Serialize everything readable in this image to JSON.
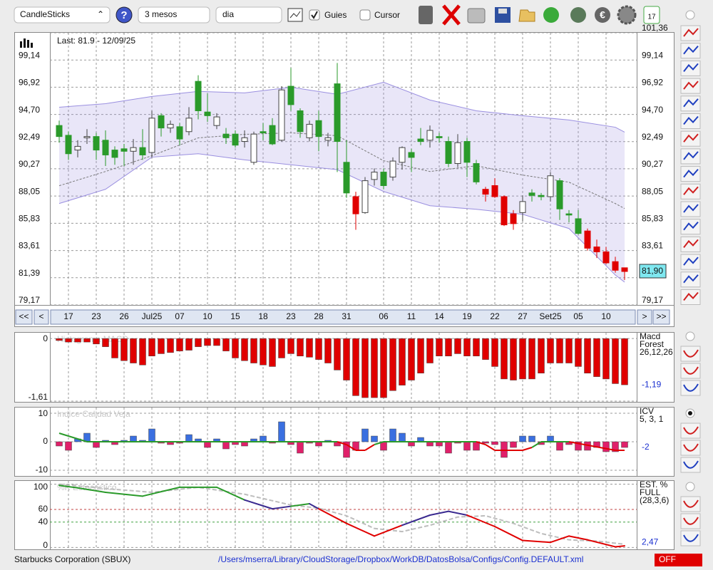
{
  "toolbar": {
    "chart_type": "CandleSticks",
    "help": "?",
    "period": "3 mesos",
    "interval": "dia",
    "guides": {
      "label": "Guies",
      "checked": true
    },
    "cursor": {
      "label": "Cursor",
      "checked": false
    }
  },
  "navigation": {
    "first": "<<",
    "prev": "<",
    "next": ">",
    "last": ">>"
  },
  "chart_data": [
    {
      "type": "candlestick",
      "info": "Last: 81.9 - 12/09/25",
      "last_value_label": "81,90",
      "categories": [
        null,
        "17",
        null,
        null,
        "23",
        null,
        null,
        "26",
        null,
        null,
        "Jul25",
        null,
        null,
        "07",
        null,
        null,
        "10",
        null,
        null,
        "15",
        null,
        null,
        "18",
        null,
        null,
        "23",
        null,
        null,
        "28",
        null,
        null,
        "31",
        null,
        null,
        null,
        "06",
        null,
        null,
        "11",
        null,
        null,
        "14",
        null,
        null,
        "19",
        null,
        null,
        "22",
        null,
        null,
        "27",
        null,
        null,
        "Set25",
        null,
        null,
        "05",
        null,
        null,
        "10",
        null,
        null
      ],
      "open": [
        93.8,
        93.0,
        91.8,
        92.8,
        92.9,
        92.6,
        91.8,
        91.9,
        91.7,
        92.0,
        91.6,
        94.6,
        93.6,
        93.7,
        93.3,
        97.4,
        94.9,
        93.8,
        93.1,
        93.1,
        92.5,
        90.8,
        93.3,
        93.8,
        92.6,
        97.0,
        95.0,
        92.8,
        94.2,
        92.6,
        97.2,
        90.8,
        88.0,
        86.7,
        89.4,
        90.0,
        89.6,
        90.8,
        91.6,
        92.7,
        92.6,
        92.9,
        92.5,
        90.7,
        92.5,
        90.7,
        88.6,
        88.9,
        88.0,
        86.6,
        86.7,
        88.3,
        88.1,
        88.0,
        89.3,
        86.6,
        86.2,
        85.2,
        83.9,
        83.5,
        82.7,
        82.2
      ],
      "high": [
        94.2,
        93.3,
        92.6,
        93.5,
        93.2,
        93.4,
        92.1,
        92.3,
        92.7,
        93.5,
        95.0,
        94.8,
        94.2,
        94.0,
        95.3,
        97.9,
        96.4,
        94.8,
        93.6,
        93.4,
        93.4,
        93.3,
        94.0,
        94.4,
        97.0,
        98.5,
        95.2,
        94.2,
        95.0,
        93.2,
        98.9,
        92.6,
        88.4,
        89.6,
        90.3,
        90.3,
        91.2,
        92.1,
        91.9,
        93.6,
        93.8,
        93.2,
        92.9,
        93.1,
        92.8,
        91.0,
        88.8,
        89.5,
        88.1,
        86.9,
        88.1,
        88.6,
        88.3,
        90.0,
        89.5,
        86.9,
        86.9,
        85.4,
        84.5,
        83.9,
        83.1,
        82.2
      ],
      "low": [
        92.4,
        91.0,
        91.2,
        92.3,
        91.0,
        90.5,
        90.6,
        90.5,
        90.6,
        91.0,
        91.2,
        92.9,
        93.2,
        92.2,
        93.0,
        94.3,
        94.1,
        93.5,
        92.3,
        92.0,
        92.0,
        90.6,
        92.6,
        92.2,
        92.5,
        95.0,
        92.8,
        92.5,
        91.7,
        92.1,
        90.0,
        87.9,
        85.3,
        86.6,
        88.9,
        88.6,
        89.3,
        90.2,
        90.0,
        92.2,
        92.0,
        92.4,
        90.4,
        90.4,
        89.6,
        89.0,
        87.6,
        87.9,
        85.6,
        85.3,
        86.0,
        87.6,
        87.7,
        87.6,
        86.1,
        85.9,
        84.9,
        83.6,
        83.0,
        82.5,
        81.8,
        81.2
      ],
      "close": [
        92.9,
        91.5,
        92.1,
        92.9,
        91.8,
        91.4,
        91.2,
        91.7,
        92.0,
        91.4,
        94.4,
        93.6,
        93.9,
        92.7,
        94.4,
        95.0,
        94.6,
        94.5,
        92.8,
        92.2,
        92.8,
        93.1,
        93.2,
        92.3,
        96.7,
        95.5,
        93.3,
        93.9,
        92.9,
        92.8,
        92.5,
        88.3,
        86.6,
        89.3,
        90.0,
        88.9,
        90.9,
        92.0,
        91.2,
        92.5,
        93.4,
        92.8,
        90.7,
        92.4,
        90.8,
        89.2,
        88.2,
        88.0,
        85.7,
        85.8,
        87.6,
        88.1,
        88.0,
        89.7,
        87.0,
        86.5,
        85.0,
        83.8,
        83.5,
        82.6,
        82.0,
        81.9
      ],
      "colors": [
        "#2a9a2a",
        "#2a9a2a",
        "#ffffff",
        "#ffffff",
        "#2a9a2a",
        "#2a9a2a",
        "#2a9a2a",
        "#2a9a2a",
        "#ffffff",
        "#2a9a2a",
        "#ffffff",
        "#2a9a2a",
        "#ffffff",
        "#2a9a2a",
        "#ffffff",
        "#2a9a2a",
        "#2a9a2a",
        "#ffffff",
        "#2a9a2a",
        "#2a9a2a",
        "#ffffff",
        "#ffffff",
        "#2a9a2a",
        "#2a9a2a",
        "#ffffff",
        "#2a9a2a",
        "#2a9a2a",
        "#ffffff",
        "#2a9a2a",
        "#ffffff",
        "#2a9a2a",
        "#2a9a2a",
        "#e00000",
        "#ffffff",
        "#ffffff",
        "#2a9a2a",
        "#ffffff",
        "#ffffff",
        "#2a9a2a",
        "#2a9a2a",
        "#ffffff",
        "#2a9a2a",
        "#2a9a2a",
        "#ffffff",
        "#2a9a2a",
        "#2a9a2a",
        "#e00000",
        "#e00000",
        "#e00000",
        "#e00000",
        "#ffffff",
        "#2a9a2a",
        "#2a9a2a",
        "#ffffff",
        "#2a9a2a",
        "#2a9a2a",
        "#2a9a2a",
        "#e00000",
        "#e00000",
        "#e00000",
        "#e00000",
        "#e00000"
      ],
      "bands": {
        "color": "#9a8fe0",
        "x": [
          0,
          5,
          10,
          15,
          20,
          25,
          30,
          35,
          40,
          45,
          50,
          55,
          60,
          61
        ],
        "upper": [
          95.29,
          95.58,
          96.17,
          96.58,
          96.46,
          96.92,
          96.34,
          97.33,
          95.88,
          95.0,
          94.6,
          94.25,
          93.66,
          93.26
        ],
        "middle": [
          88.89,
          90.05,
          91.34,
          92.79,
          93.08,
          93.2,
          92.97,
          90.93,
          90.05,
          90.52,
          89.76,
          89.18,
          87.44,
          87.03
        ],
        "lower": [
          87.44,
          88.6,
          91.22,
          91.5,
          91.0,
          90.6,
          90.2,
          88.42,
          87.26,
          86.97,
          86.56,
          85.4,
          81.61,
          81.03
        ]
      },
      "ylim": [
        79.17,
        101.36
      ],
      "yticks": [
        {
          "value": 79.17,
          "label": "79,17"
        },
        {
          "value": 81.39,
          "label": "81,39"
        },
        {
          "value": 83.61,
          "label": "83,61"
        },
        {
          "value": 85.83,
          "label": "85,83"
        },
        {
          "value": 88.05,
          "label": "88,05"
        },
        {
          "value": 90.27,
          "label": "90,27"
        },
        {
          "value": 92.49,
          "label": "92,49"
        },
        {
          "value": 94.7,
          "label": "94,70"
        },
        {
          "value": 96.92,
          "label": "96,92"
        },
        {
          "value": 99.14,
          "label": "99,14"
        },
        {
          "value": 101.36,
          "label": "101,36"
        }
      ],
      "grid": true
    },
    {
      "type": "bar",
      "title": "Histograma MACD",
      "label_lines": [
        "Macd",
        "Forest",
        "26,12,26"
      ],
      "last_value_label": "-1,19",
      "color": "#e00000",
      "values": [
        -0.05,
        -0.09,
        -0.09,
        -0.09,
        -0.14,
        -0.21,
        -0.5,
        -0.57,
        -0.63,
        -0.68,
        -0.45,
        -0.39,
        -0.36,
        -0.32,
        -0.3,
        -0.21,
        -0.18,
        -0.18,
        -0.32,
        -0.5,
        -0.57,
        -0.63,
        -0.68,
        -0.72,
        -0.5,
        -0.39,
        -0.45,
        -0.48,
        -0.54,
        -0.63,
        -0.81,
        -1.07,
        -1.47,
        -1.52,
        -1.52,
        -1.52,
        -1.34,
        -1.2,
        -1.07,
        -0.89,
        -0.63,
        -0.45,
        -0.45,
        -0.39,
        -0.45,
        -0.45,
        -0.54,
        -0.72,
        -1.04,
        -1.07,
        -1.04,
        -1.04,
        -0.89,
        -0.63,
        -0.63,
        -0.63,
        -0.72,
        -0.89,
        -0.98,
        -1.04,
        -1.16,
        -1.19
      ],
      "ylim": [
        -1.61,
        0.15
      ],
      "yticks": [
        0,
        {
          "value": -1.61,
          "label": "-1,61"
        }
      ]
    },
    {
      "type": "bar",
      "title": "Indice Calidad Vela",
      "label_lines": [
        "ICV",
        "5, 3, 1"
      ],
      "last_value_label": "-2",
      "positive_color": "#3a6fe0",
      "negative_color": "#e0206a",
      "values": [
        -1.5,
        -3,
        1,
        3,
        -2,
        0.5,
        -1,
        0.5,
        2,
        0.5,
        4.5,
        -0.5,
        -1,
        -0.5,
        2.5,
        1,
        -2,
        1,
        -2.5,
        -1,
        -1.5,
        1,
        2,
        -0.5,
        7,
        -1,
        -4,
        -0.5,
        -1.5,
        0.5,
        -1.5,
        -5.5,
        -3,
        4.5,
        2,
        -3,
        4.5,
        3,
        -1.5,
        1.5,
        -1.5,
        -1.5,
        -4,
        -0.5,
        -3,
        -3,
        -0.5,
        -1,
        -5.5,
        -2,
        2,
        2,
        -1,
        2,
        -3,
        -1,
        -3,
        -3,
        -2,
        -3.5,
        -3.5,
        -2
      ],
      "line": {
        "color": "#2a9a2a",
        "alt_color": "#e00000",
        "x": [
          0,
          3,
          6,
          10,
          15,
          20,
          25,
          30,
          31,
          32,
          33,
          34,
          35,
          40,
          45,
          46,
          47,
          48,
          49,
          50,
          51,
          52,
          55,
          60,
          61
        ],
        "values": [
          3,
          0,
          0,
          0,
          0,
          0,
          0,
          0,
          -1,
          -3,
          -3,
          -1,
          0,
          0,
          0,
          -1,
          -3,
          -3,
          -3,
          -3,
          -2,
          0,
          0,
          -3,
          -3
        ]
      },
      "ylim": [
        -12,
        12
      ],
      "yticks": [
        10,
        0,
        -10
      ]
    },
    {
      "type": "line",
      "title": "%K Estocastico",
      "label_lines": [
        "EST. %",
        "FULL",
        "(28,3,6)"
      ],
      "last_value_label": "2,47",
      "k": {
        "x": [
          0,
          2,
          5,
          9,
          13,
          17,
          20,
          23,
          25,
          27,
          28,
          31,
          34,
          37,
          40,
          42,
          44,
          47,
          50,
          53,
          55,
          57,
          60,
          61
        ],
        "values": [
          98,
          94,
          87,
          81,
          95,
          95,
          75,
          61,
          65,
          69,
          61,
          38,
          18,
          35,
          51,
          57,
          51,
          33,
          11,
          8,
          18,
          12,
          1,
          2.47
        ],
        "colors": [
          "#2a9a2a",
          "#2a9a2a",
          "#2a9a2a",
          "#2a9a2a",
          "#2a9a2a",
          "#2a9a2a",
          "#2a9a2a",
          "#3a2a90",
          "#3a2a90",
          "#2a9a2a",
          "#3a2a90",
          "#e00000",
          "#e00000",
          "#e00000",
          "#3a2a90",
          "#3a2a90",
          "#3a2a90",
          "#e00000",
          "#e00000",
          "#e00000",
          "#e00000",
          "#e00000",
          "#e00000",
          "#e00000"
        ]
      },
      "d": {
        "color": "#bdbdbd",
        "x": [
          0,
          5,
          10,
          15,
          20,
          25,
          28,
          31,
          34,
          37,
          40,
          43,
          46,
          49,
          52,
          55,
          58,
          61
        ],
        "values": [
          100,
          93,
          87,
          95,
          84,
          67,
          62,
          50,
          30,
          25,
          35,
          48,
          50,
          38,
          22,
          12,
          10,
          5
        ]
      },
      "ylim": [
        -3,
        105
      ],
      "yticks": [
        100,
        60,
        40,
        0
      ]
    }
  ],
  "footer": {
    "company": "Starbucks Corporation (SBUX)",
    "path": "/Users/mserra/Library/CloudStorage/Dropbox/WorkDB/DatosBolsa/Configs/Config.DEFAULT.xml",
    "status": "OFF"
  }
}
